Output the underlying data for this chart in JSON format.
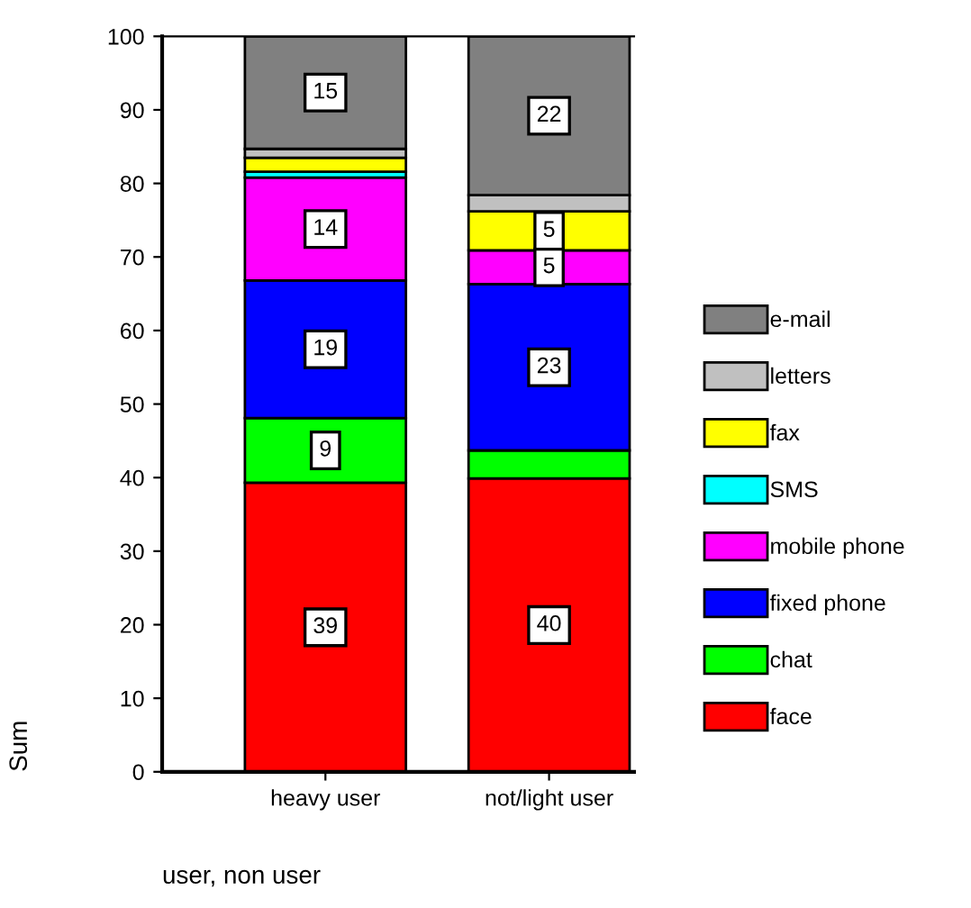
{
  "chart_data": {
    "type": "bar",
    "stacked": true,
    "xlabel": "user, non user",
    "ylabel": "Sum",
    "categories": [
      "heavy user",
      "not/light user"
    ],
    "ylim": [
      0,
      100
    ],
    "yticks": [
      0,
      10,
      20,
      30,
      40,
      50,
      60,
      70,
      80,
      90,
      100
    ],
    "grid": false,
    "legend": "right",
    "series": [
      {
        "name": "face",
        "color": "#ff0000",
        "values": [
          39.3,
          39.9
        ],
        "value_labels": [
          "39",
          "40"
        ]
      },
      {
        "name": "chat",
        "color": "#00ff00",
        "values": [
          8.8,
          3.8
        ],
        "value_labels": [
          "9",
          null
        ]
      },
      {
        "name": "fixed phone",
        "color": "#0000ff",
        "values": [
          18.7,
          22.6
        ],
        "value_labels": [
          "19",
          "23"
        ]
      },
      {
        "name": "mobile phone",
        "color": "#ff00ff",
        "values": [
          14.0,
          4.6
        ],
        "value_labels": [
          "14",
          "5"
        ]
      },
      {
        "name": "SMS",
        "color": "#00ffff",
        "values": [
          0.8,
          0
        ],
        "value_labels": [
          null,
          null
        ]
      },
      {
        "name": "fax",
        "color": "#ffff00",
        "values": [
          1.9,
          5.3
        ],
        "value_labels": [
          null,
          "5"
        ]
      },
      {
        "name": "letters",
        "color": "#c0c0c0",
        "values": [
          1.2,
          2.2
        ],
        "value_labels": [
          null,
          null
        ]
      },
      {
        "name": "e-mail",
        "color": "#808080",
        "values": [
          15.3,
          21.6
        ],
        "value_labels": [
          "15",
          "22"
        ]
      }
    ]
  }
}
